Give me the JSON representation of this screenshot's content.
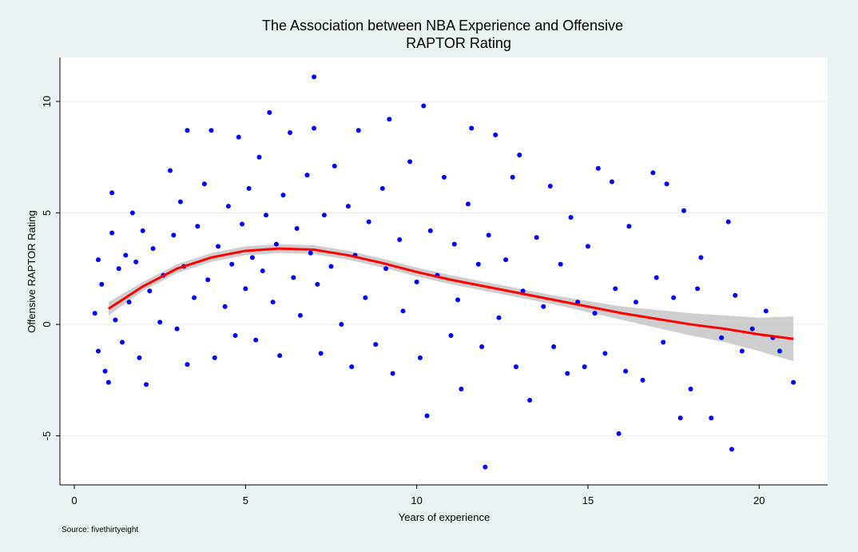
{
  "chart_data": {
    "type": "scatter",
    "title": [
      "The Association between NBA Experience and Offensive",
      "RAPTOR Rating"
    ],
    "x_label": "Years of experience",
    "y_label": "Offensive RAPTOR Rating",
    "source": "Source: fivethirtyeight",
    "xlim": [
      -0.42,
      22.0
    ],
    "ylim": [
      -7.2,
      11.97
    ],
    "xticks": [
      0,
      5,
      10,
      15,
      20
    ],
    "yticks": [
      -5,
      0,
      5,
      10
    ],
    "grid": true,
    "scatter": {
      "color": "#0000ff",
      "x": [
        0.6,
        0.7,
        0.8,
        0.9,
        1.0,
        1.1,
        1.1,
        0.7,
        1.2,
        1.3,
        1.4,
        1.5,
        1.6,
        1.7,
        1.8,
        1.9,
        2.0,
        2.1,
        2.2,
        2.3,
        2.5,
        2.6,
        2.8,
        2.9,
        3.0,
        3.1,
        3.2,
        3.3,
        3.3,
        3.5,
        3.6,
        3.8,
        3.9,
        4.0,
        4.1,
        4.2,
        4.4,
        4.5,
        4.6,
        4.7,
        4.8,
        4.9,
        5.0,
        5.1,
        5.2,
        5.3,
        5.4,
        5.5,
        5.6,
        5.7,
        5.8,
        5.9,
        6.0,
        6.1,
        6.3,
        6.4,
        6.5,
        6.6,
        6.8,
        6.9,
        7.0,
        7.0,
        7.1,
        7.2,
        7.3,
        7.5,
        7.6,
        7.8,
        8.0,
        8.1,
        8.2,
        8.3,
        8.5,
        8.6,
        8.8,
        9.0,
        9.1,
        9.2,
        9.3,
        9.5,
        9.6,
        9.8,
        10.0,
        10.1,
        10.2,
        10.3,
        10.4,
        10.6,
        10.8,
        11.0,
        11.1,
        11.2,
        11.3,
        11.5,
        11.6,
        11.8,
        11.9,
        12.0,
        12.1,
        12.3,
        12.4,
        12.6,
        12.8,
        12.9,
        13.0,
        13.1,
        13.3,
        13.5,
        13.7,
        13.9,
        14.0,
        14.2,
        14.4,
        14.5,
        14.7,
        14.9,
        15.0,
        15.2,
        15.3,
        15.5,
        15.7,
        15.8,
        15.9,
        16.1,
        16.2,
        16.4,
        16.6,
        16.9,
        17.0,
        17.2,
        17.3,
        17.5,
        17.7,
        17.8,
        18.0,
        18.2,
        18.3,
        18.6,
        18.9,
        19.1,
        19.2,
        19.3,
        19.5,
        19.8,
        20.2,
        20.4,
        20.6,
        21.0
      ],
      "values": [
        0.5,
        -1.2,
        1.8,
        -2.1,
        -2.6,
        5.9,
        4.1,
        2.9,
        0.2,
        2.5,
        -0.8,
        3.1,
        1.0,
        5.0,
        2.8,
        -1.5,
        4.2,
        -2.7,
        1.5,
        3.4,
        0.1,
        2.2,
        6.9,
        4.0,
        -0.2,
        5.5,
        2.6,
        8.7,
        -1.8,
        1.2,
        4.4,
        6.3,
        2.0,
        8.7,
        -1.5,
        3.5,
        0.8,
        5.3,
        2.7,
        -0.5,
        8.4,
        4.5,
        1.6,
        6.1,
        3.0,
        -0.7,
        7.5,
        2.4,
        4.9,
        9.5,
        1.0,
        3.6,
        -1.4,
        5.8,
        8.6,
        2.1,
        4.3,
        0.4,
        6.7,
        3.2,
        11.1,
        8.8,
        1.8,
        -1.3,
        4.9,
        2.6,
        7.1,
        0.0,
        5.3,
        -1.9,
        3.1,
        8.7,
        1.2,
        4.6,
        -0.9,
        6.1,
        2.5,
        9.2,
        -2.2,
        3.8,
        0.6,
        7.3,
        1.9,
        -1.5,
        9.8,
        -4.1,
        4.2,
        2.2,
        6.6,
        -0.5,
        3.6,
        1.1,
        -2.9,
        5.4,
        8.8,
        2.7,
        -1.0,
        -6.4,
        4.0,
        8.5,
        0.3,
        2.9,
        6.6,
        -1.9,
        7.6,
        1.5,
        -3.4,
        3.9,
        0.8,
        6.2,
        -1.0,
        2.7,
        -2.2,
        4.8,
        1.0,
        -1.9,
        3.5,
        0.5,
        7.0,
        -1.3,
        6.4,
        1.6,
        -4.9,
        -2.1,
        4.4,
        1.0,
        -2.5,
        6.8,
        2.1,
        -0.8,
        6.3,
        1.2,
        -4.2,
        5.1,
        -2.9,
        1.6,
        3.0,
        -4.2,
        -0.6,
        4.6,
        -5.6,
        1.3,
        -1.2,
        -0.2,
        0.6,
        -0.6,
        -1.2,
        -2.6
      ]
    },
    "fit": {
      "color": "#ff0000",
      "band_color": "#bdbdbd",
      "x": [
        1,
        2,
        3,
        4,
        5,
        6,
        7,
        8,
        9,
        10,
        11,
        12,
        13,
        14,
        15,
        16,
        17,
        18,
        19,
        20,
        21
      ],
      "values": [
        0.7,
        1.7,
        2.5,
        3.0,
        3.3,
        3.4,
        3.35,
        3.1,
        2.75,
        2.35,
        2.0,
        1.7,
        1.4,
        1.1,
        0.8,
        0.5,
        0.25,
        0.0,
        -0.2,
        -0.45,
        -0.65
      ],
      "lower": [
        0.4,
        1.5,
        2.3,
        2.8,
        3.1,
        3.2,
        3.15,
        2.9,
        2.55,
        2.15,
        1.8,
        1.5,
        1.2,
        0.9,
        0.55,
        0.2,
        -0.15,
        -0.5,
        -0.8,
        -1.2,
        -1.65
      ],
      "upper": [
        1.0,
        1.9,
        2.7,
        3.2,
        3.5,
        3.6,
        3.55,
        3.3,
        2.95,
        2.55,
        2.2,
        1.9,
        1.6,
        1.3,
        1.05,
        0.8,
        0.65,
        0.5,
        0.4,
        0.3,
        0.35
      ]
    }
  }
}
